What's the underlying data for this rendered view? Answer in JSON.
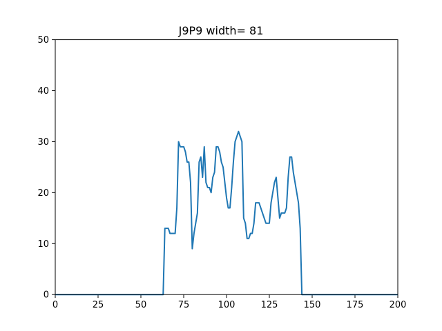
{
  "chart_data": {
    "type": "line",
    "title": "J9P9 width= 81",
    "xlabel": "",
    "ylabel": "",
    "xlim": [
      0,
      200
    ],
    "ylim": [
      0,
      50
    ],
    "xticks": [
      0,
      25,
      50,
      75,
      100,
      125,
      150,
      175,
      200
    ],
    "yticks": [
      0,
      10,
      20,
      30,
      40,
      50
    ],
    "grid": false,
    "series": [
      {
        "color": "#1f77b4",
        "x": [
          0,
          63,
          64,
          65,
          66,
          67,
          68,
          69,
          70,
          71,
          72,
          73,
          74,
          75,
          76,
          77,
          78,
          79,
          80,
          81,
          82,
          83,
          84,
          85,
          86,
          87,
          88,
          89,
          90,
          91,
          92,
          93,
          94,
          95,
          96,
          97,
          98,
          99,
          100,
          101,
          102,
          103,
          104,
          105,
          106,
          107,
          108,
          109,
          110,
          111,
          112,
          113,
          114,
          115,
          116,
          117,
          118,
          119,
          120,
          121,
          122,
          123,
          124,
          125,
          126,
          127,
          128,
          129,
          130,
          131,
          132,
          133,
          134,
          135,
          136,
          137,
          138,
          139,
          140,
          141,
          142,
          143,
          144,
          200
        ],
        "y": [
          0,
          0,
          13,
          13,
          13,
          12,
          12,
          12,
          12,
          17,
          30,
          29,
          29,
          29,
          28,
          26,
          26,
          22,
          9,
          12,
          14,
          16,
          26,
          27,
          23,
          29,
          22,
          21,
          21,
          20,
          23,
          24,
          29,
          29,
          28,
          26,
          25,
          22,
          19,
          17,
          17,
          21,
          26,
          30,
          31,
          32,
          31,
          30,
          15,
          14,
          11,
          11,
          12,
          12,
          14,
          18,
          18,
          18,
          17,
          16,
          15,
          14,
          14,
          14,
          18,
          20,
          22,
          23,
          19,
          15,
          16,
          16,
          16,
          17,
          23,
          27,
          27,
          24,
          22,
          20,
          18,
          13,
          0,
          0
        ]
      }
    ]
  }
}
